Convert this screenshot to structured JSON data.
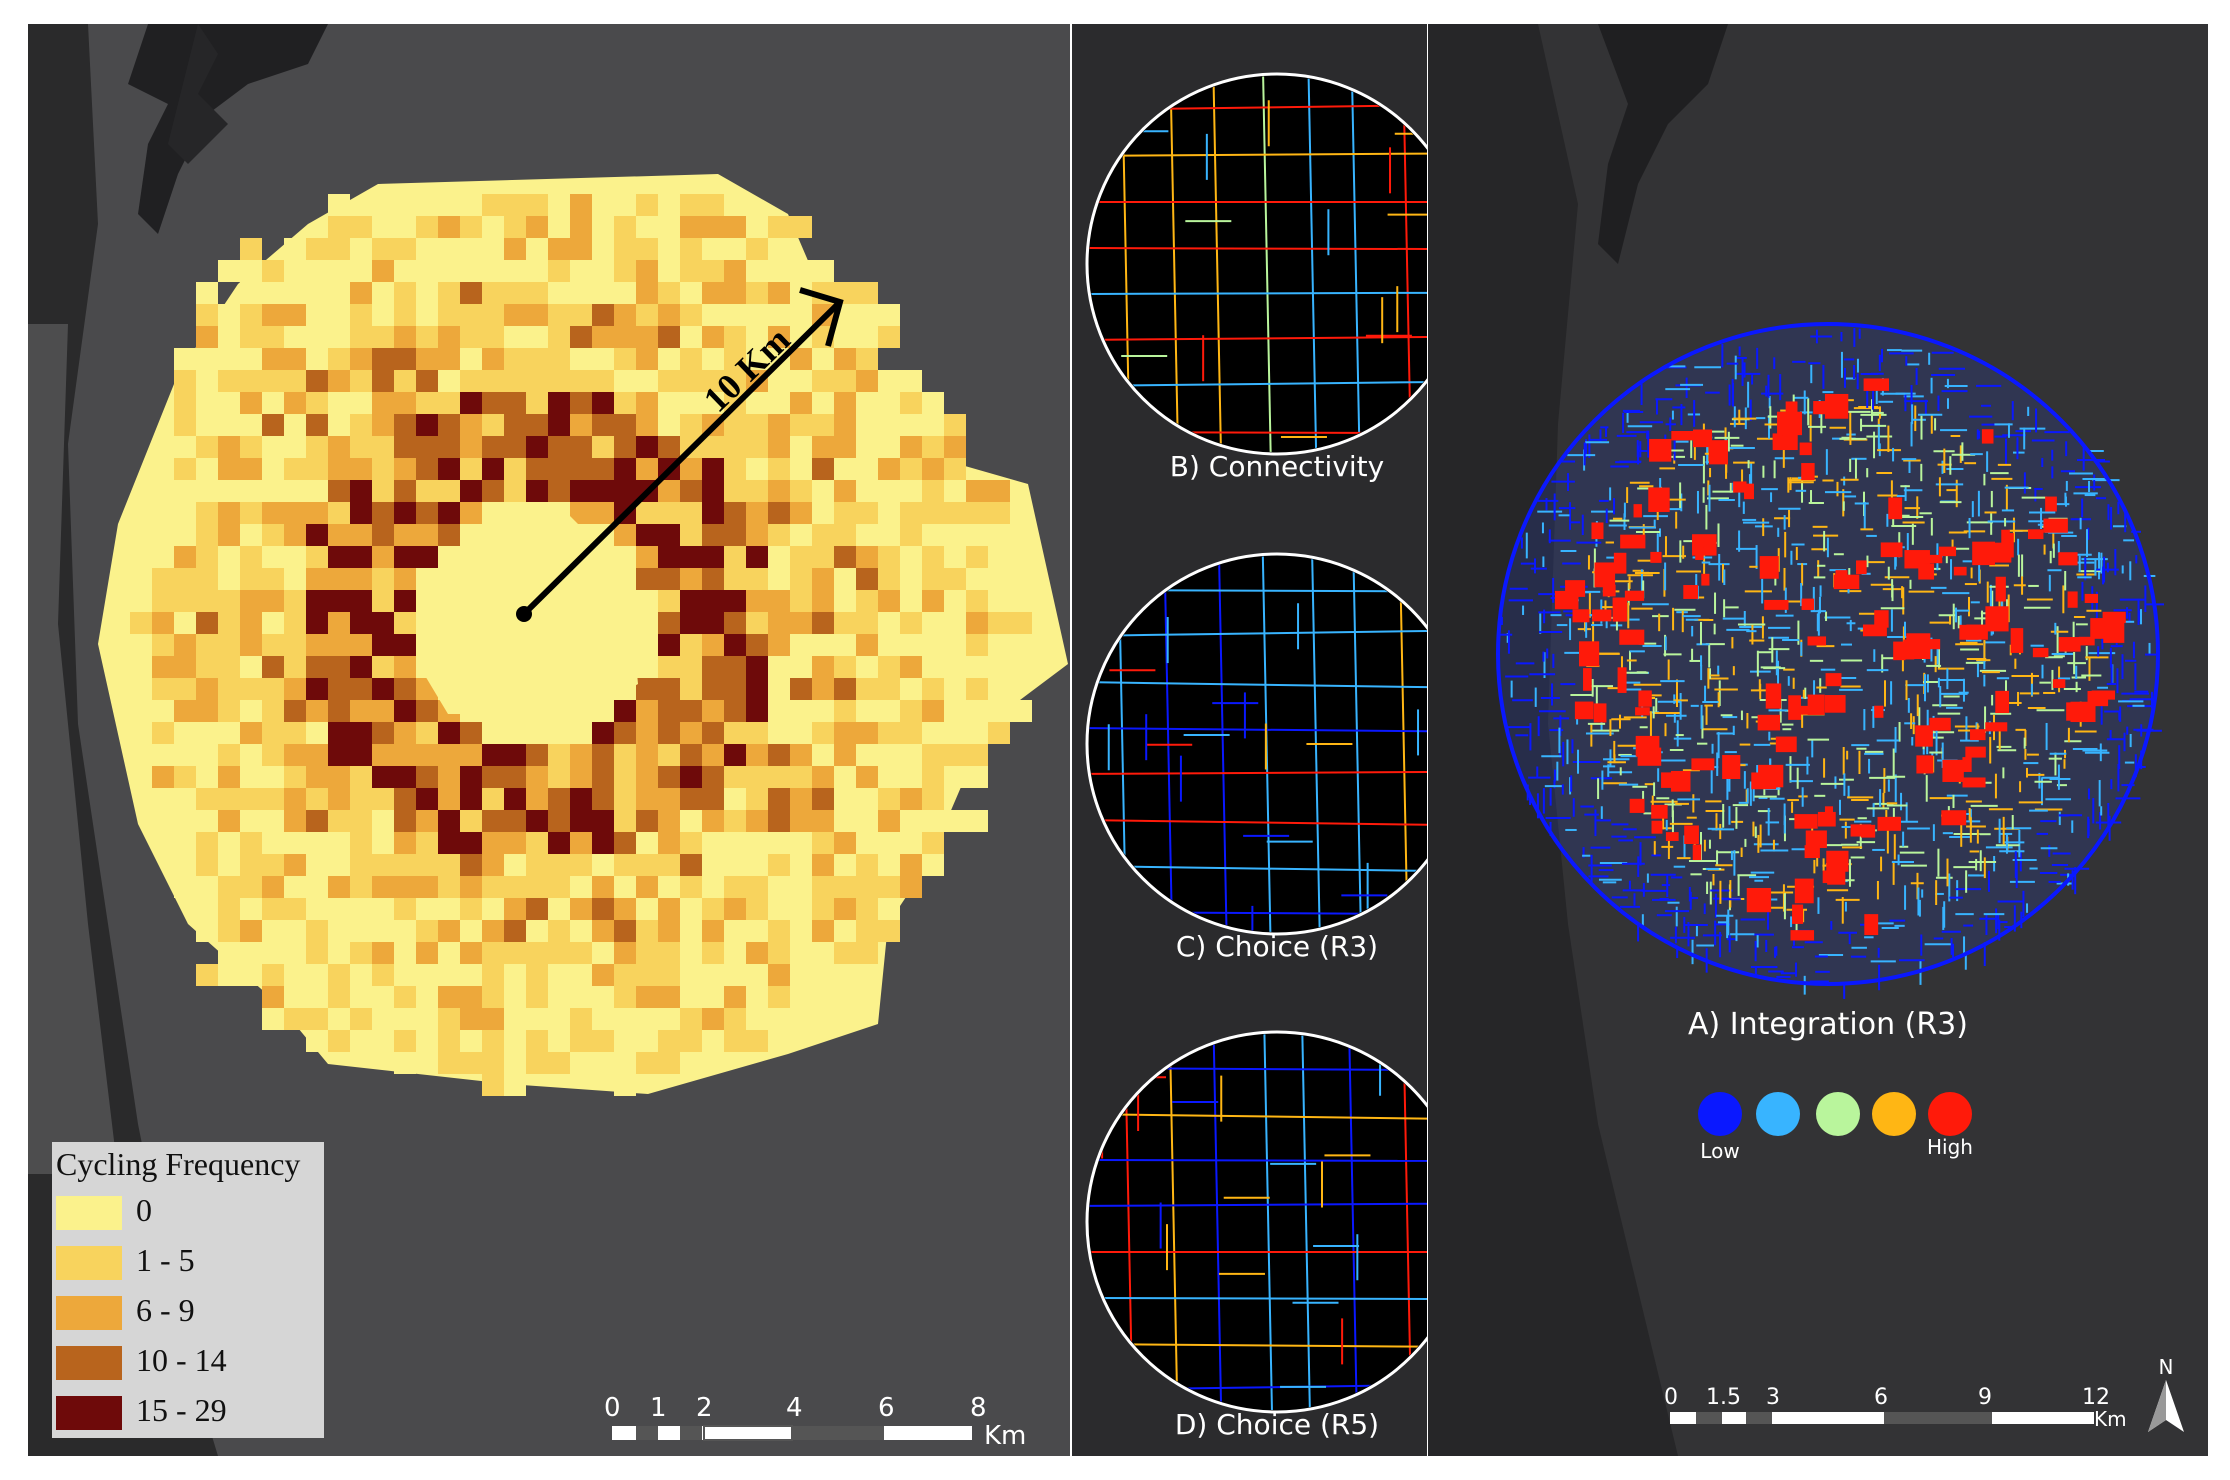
{
  "left_map": {
    "distance_label": "10 Km",
    "legend": {
      "title": "Cycling Frequency",
      "items": [
        {
          "label": "0",
          "color": "#fbf28c"
        },
        {
          "label": "1 - 5",
          "color": "#f8d35d"
        },
        {
          "label": "6 - 9",
          "color": "#eda83b"
        },
        {
          "label": "10 - 14",
          "color": "#b8641d"
        },
        {
          "label": "15 - 29",
          "color": "#6e0a0a"
        }
      ]
    },
    "scale_bar": {
      "ticks": [
        "0",
        "1",
        "2",
        "4",
        "6",
        "8"
      ],
      "unit": "Km"
    }
  },
  "insets": [
    {
      "label": "B) Connectivity"
    },
    {
      "label": "C) Choice (R3)"
    },
    {
      "label": "D) Choice (R5)"
    }
  ],
  "right_map": {
    "title": "A) Integration (R3)",
    "legend": {
      "colors": [
        "#0a18ff",
        "#38b4ff",
        "#b9f59c",
        "#ffb614",
        "#ff1a0a"
      ],
      "low_label": "Low",
      "high_label": "High"
    },
    "scale_bar": {
      "ticks": [
        "0",
        "1.5",
        "3",
        "6",
        "9",
        "12"
      ],
      "unit": "Km"
    },
    "north_label": "N"
  }
}
